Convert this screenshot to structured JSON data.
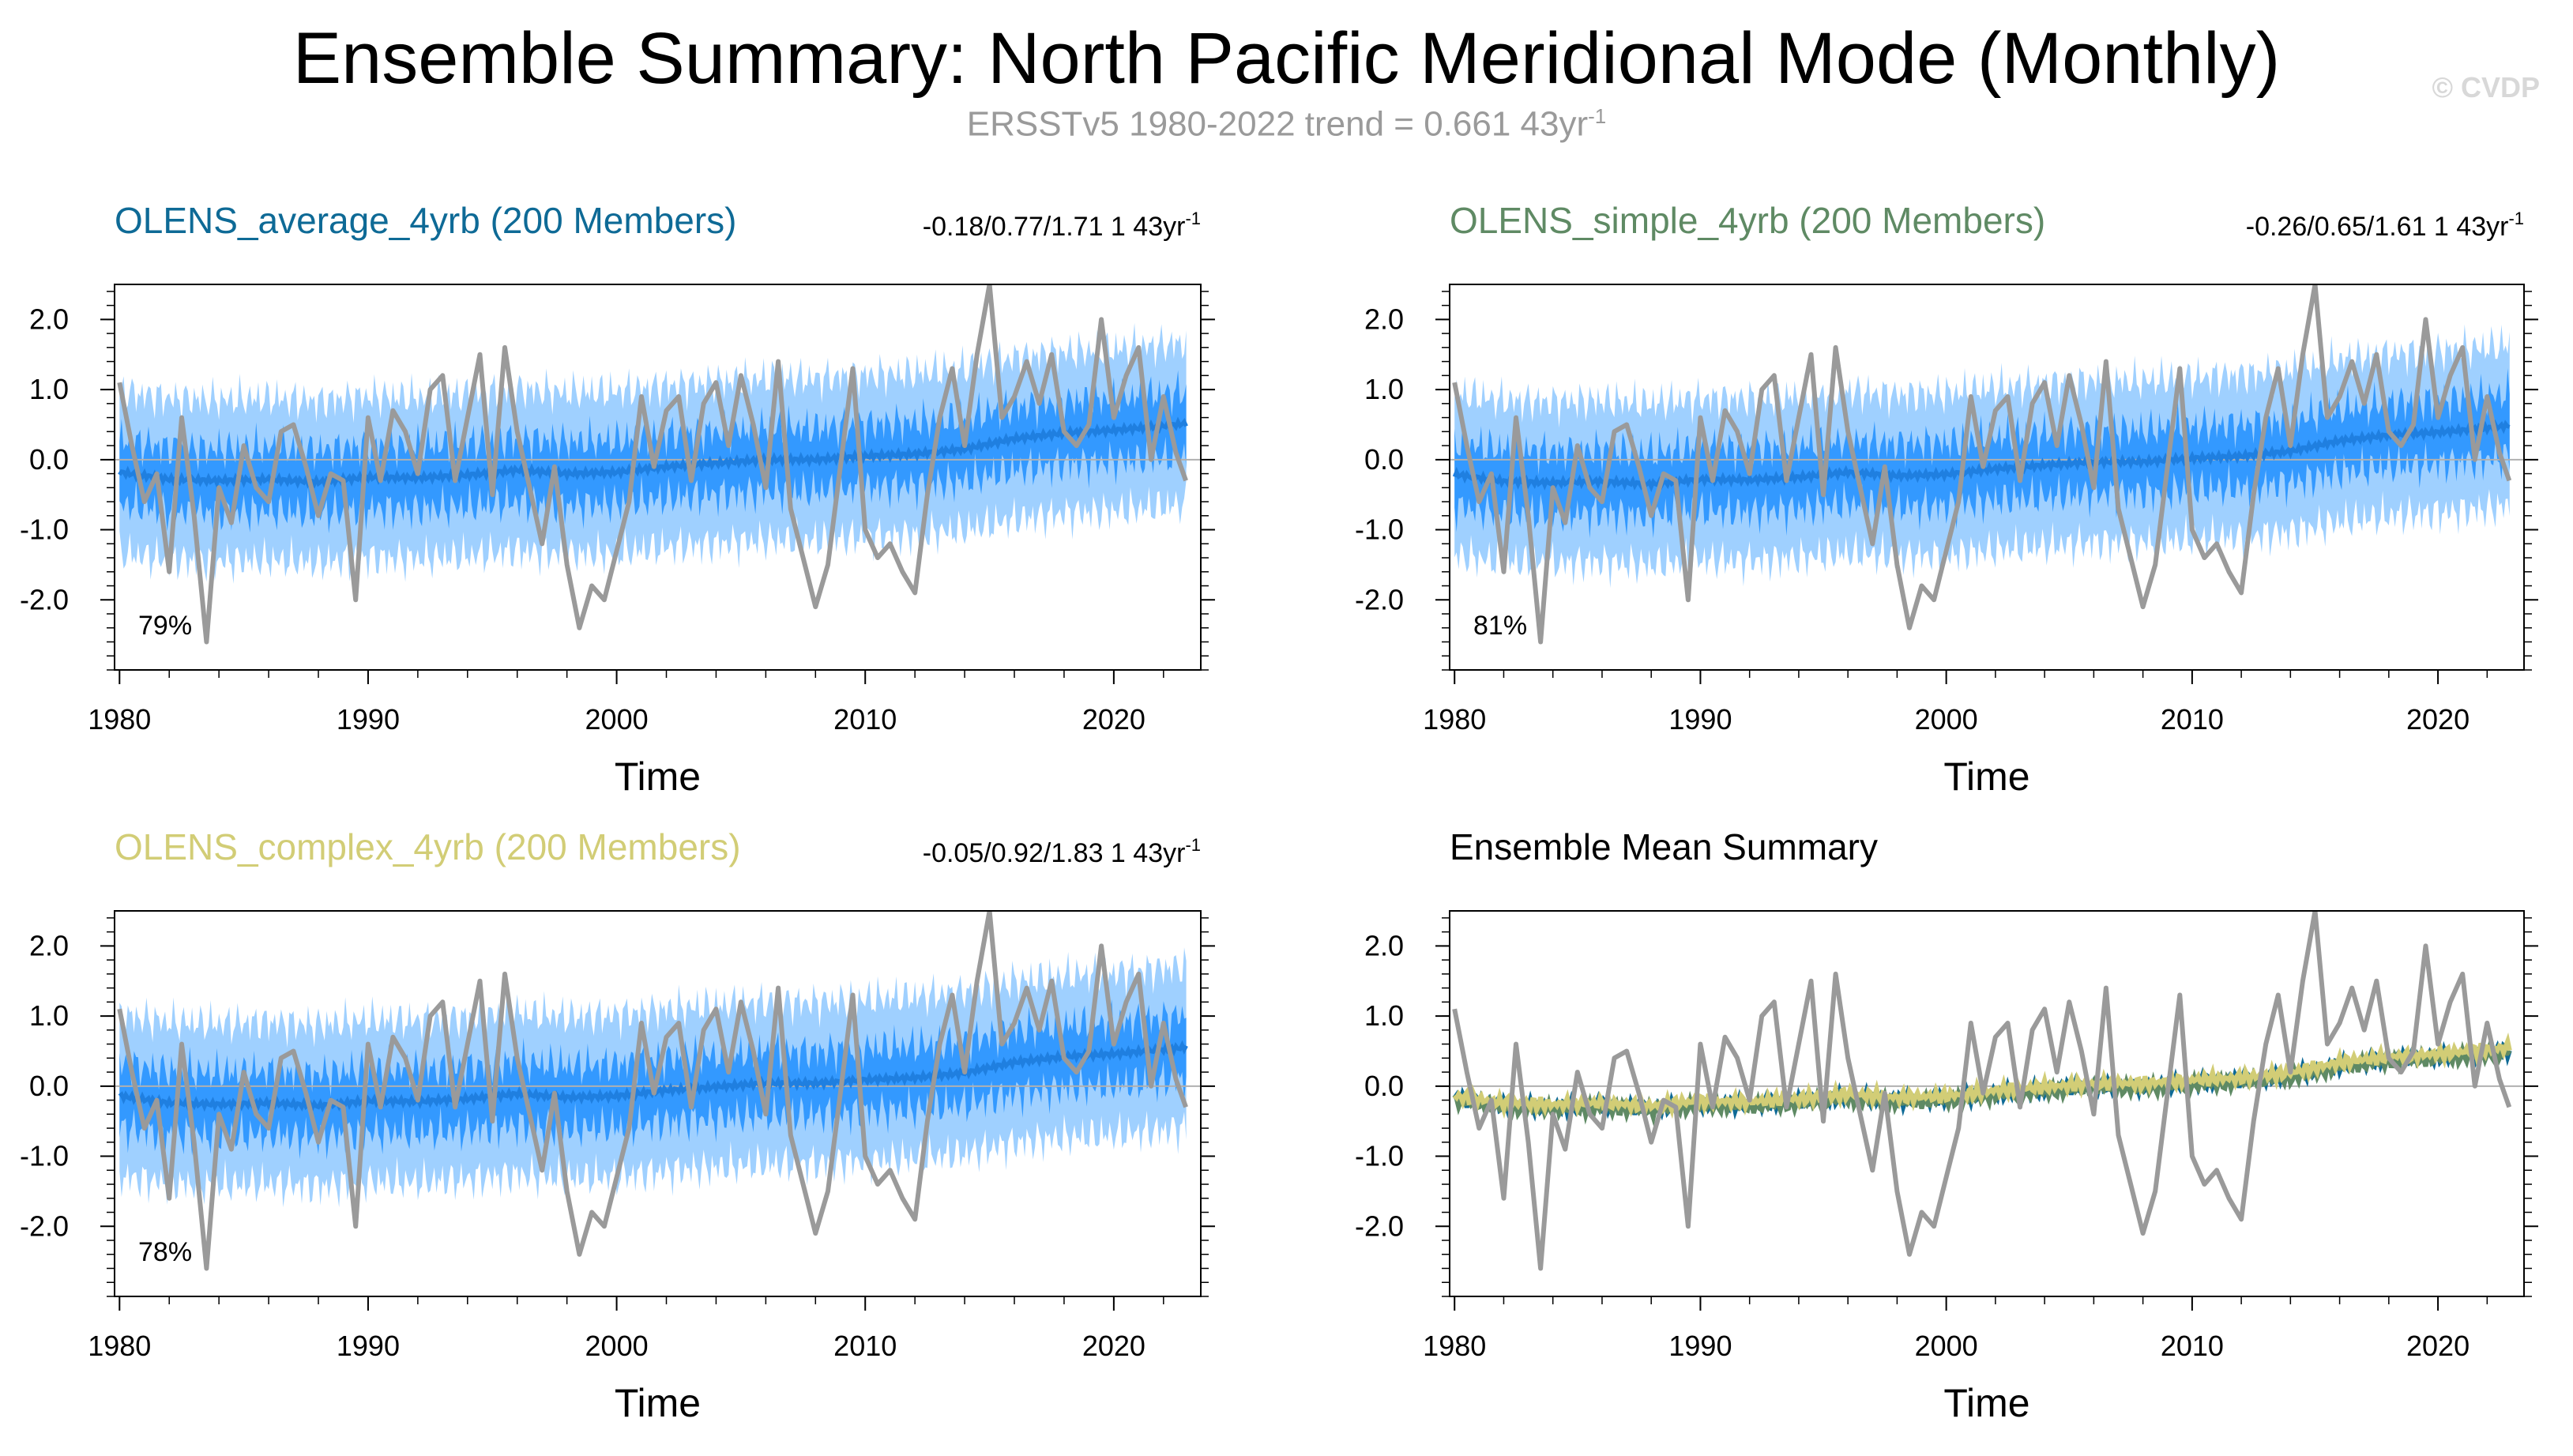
{
  "title": "Ensemble Summary: North Pacific Meridional Mode (Monthly)",
  "subtitle": {
    "text": "ERSSTv5 1980-2022 trend = 0.661 43yr",
    "superscript": "-1"
  },
  "watermark": "© CVDP",
  "colors": {
    "obs": "#9a9a9a",
    "band_outer": "#9fd0ff",
    "band_inner": "#3399ff",
    "ens_mean": "#1f7fe0",
    "zero_line": "#b0b0b0",
    "average": "#0e6a96",
    "simple": "#5f8a64",
    "complex": "#d2cd76"
  },
  "panels": [
    {
      "title": "OLENS_average_4yrb (200 Members)",
      "title_color": "#0e6a96",
      "stats": "-0.18/0.77/1.71 1 43yr",
      "stats_sup": "-1",
      "percent": "79%",
      "offset": 0.0
    },
    {
      "title": "OLENS_simple_4yrb (200 Members)",
      "title_color": "#5f8a64",
      "stats": "-0.26/0.65/1.61 1 43yr",
      "stats_sup": "-1",
      "percent": "81%",
      "offset": -0.03
    },
    {
      "title": "OLENS_complex_4yrb (200 Members)",
      "title_color": "#d2cd76",
      "stats": "-0.05/0.92/1.83 1 43yr",
      "stats_sup": "-1",
      "percent": "78%",
      "offset": 0.04
    },
    {
      "title": "Ensemble Mean Summary",
      "title_color": "#000000",
      "stats": "",
      "stats_sup": "",
      "percent": "",
      "offset": 0
    }
  ],
  "chart_data": {
    "type": "line",
    "xlabel": "Time",
    "ylabel": "",
    "xlim": [
      1979.8,
      2023.5
    ],
    "ylim": [
      -3.0,
      2.5
    ],
    "xticks": [
      "1980",
      "1990",
      "2000",
      "2010",
      "2020"
    ],
    "yticks": [
      "2.0",
      "1.0",
      "0.0",
      "-1.0",
      "-2.0"
    ],
    "grid": false,
    "obs": {
      "name": "ERSSTv5",
      "x": [
        1980.0,
        1980.5,
        1981.0,
        1981.5,
        1982.0,
        1982.5,
        1983.0,
        1983.5,
        1984.0,
        1984.5,
        1985.0,
        1985.5,
        1986.0,
        1986.5,
        1987.0,
        1987.5,
        1988.0,
        1988.5,
        1989.0,
        1989.5,
        1990.0,
        1990.5,
        1991.0,
        1991.5,
        1992.0,
        1992.5,
        1993.0,
        1993.5,
        1994.0,
        1994.5,
        1995.0,
        1995.5,
        1996.0,
        1996.5,
        1997.0,
        1997.5,
        1998.0,
        1998.5,
        1999.0,
        1999.5,
        2000.0,
        2000.5,
        2001.0,
        2001.5,
        2002.0,
        2002.5,
        2003.0,
        2003.5,
        2004.0,
        2004.5,
        2005.0,
        2005.5,
        2006.0,
        2006.5,
        2007.0,
        2007.5,
        2008.0,
        2008.5,
        2009.0,
        2009.5,
        2010.0,
        2010.5,
        2011.0,
        2011.5,
        2012.0,
        2012.5,
        2013.0,
        2013.5,
        2014.0,
        2014.5,
        2015.0,
        2015.5,
        2016.0,
        2016.5,
        2017.0,
        2017.5,
        2018.0,
        2018.5,
        2019.0,
        2019.5,
        2020.0,
        2020.5,
        2021.0,
        2021.5,
        2022.0,
        2022.5,
        2022.9
      ],
      "y": [
        1.1,
        0.2,
        -0.6,
        -0.2,
        -1.6,
        0.6,
        -0.8,
        -2.6,
        -0.4,
        -0.9,
        0.2,
        -0.4,
        -0.6,
        0.4,
        0.5,
        -0.1,
        -0.8,
        -0.2,
        -0.3,
        -2.0,
        0.6,
        -0.3,
        0.7,
        0.4,
        -0.2,
        1.0,
        1.2,
        -0.3,
        0.6,
        1.5,
        -0.5,
        1.6,
        0.4,
        -0.4,
        -1.2,
        -0.1,
        -1.5,
        -2.4,
        -1.8,
        -2.0,
        -1.3,
        -0.6,
        0.9,
        -0.1,
        0.7,
        0.9,
        -0.3,
        0.8,
        1.1,
        0.2,
        1.2,
        0.5,
        -0.4,
        1.4,
        -0.7,
        -1.4,
        -2.1,
        -1.5,
        -0.1,
        1.3,
        -1.0,
        -1.4,
        -1.2,
        -1.6,
        -1.9,
        -0.5,
        0.6,
        1.3,
        0.2,
        1.5,
        2.5,
        0.6,
        0.9,
        1.4,
        0.8,
        1.5,
        0.4,
        0.2,
        0.5,
        2.0,
        0.6,
        1.2,
        1.6,
        0.0,
        0.9,
        0.1,
        -0.3
      ]
    },
    "ensemble_mean": {
      "x": [
        1980,
        1982,
        1984,
        1986,
        1988,
        1990,
        1992,
        1994,
        1996,
        1998,
        2000,
        2002,
        2004,
        2006,
        2008,
        2010,
        2012,
        2014,
        2016,
        2018,
        2020,
        2022,
        2023
      ],
      "y": [
        -0.18,
        -0.28,
        -0.3,
        -0.28,
        -0.32,
        -0.25,
        -0.26,
        -0.22,
        -0.15,
        -0.2,
        -0.18,
        -0.1,
        -0.05,
        0.0,
        0.0,
        0.05,
        0.08,
        0.15,
        0.3,
        0.38,
        0.42,
        0.48,
        0.52
      ]
    },
    "band_inner_halfwidth": 0.45,
    "band_outer_halfwidth": 1.15,
    "series": [
      {
        "name": "OLENS_average_4yrb",
        "color": "#0e6a96",
        "offset": 0.0
      },
      {
        "name": "OLENS_simple_4yrb",
        "color": "#5f8a64",
        "offset": -0.03
      },
      {
        "name": "OLENS_complex_4yrb",
        "color": "#d2cd76",
        "offset": 0.04
      }
    ]
  }
}
